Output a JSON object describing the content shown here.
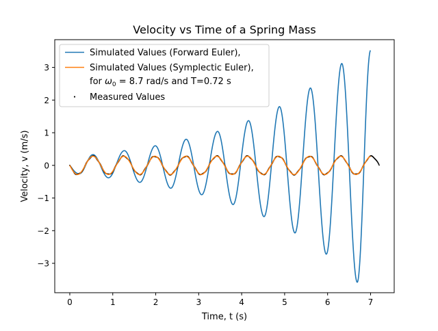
{
  "chart_data": {
    "type": "line",
    "title": "Velocity vs Time of a Spring Mass",
    "xlabel": "Time, t (s)",
    "ylabel": "Velocity, v (m/s)",
    "xlim": [
      -0.35,
      7.55
    ],
    "ylim": [
      -3.9,
      3.85
    ],
    "xticks": [
      0,
      1,
      2,
      3,
      4,
      5,
      6,
      7
    ],
    "yticks": [
      -3,
      -2,
      -1,
      0,
      1,
      2,
      3
    ],
    "xtick_labels": [
      "0",
      "1",
      "2",
      "3",
      "4",
      "5",
      "6",
      "7"
    ],
    "ytick_labels": [
      "−3",
      "−2",
      "−1",
      "0",
      "1",
      "2",
      "3"
    ],
    "grid": false,
    "legend_position": "top-left",
    "legend": {
      "entries": [
        "Simulated Values (Forward Euler),",
        "Simulated Values (Symplectic Euler),",
        "for ω₀ = 8.7 rad/s and T=0.72 s",
        "Measured Values"
      ],
      "parameter_line": {
        "prefix": "for ",
        "omega_symbol": "ω",
        "omega_subscript": "0",
        "rest": " = 8.7 rad/s and T=0.72 s"
      }
    },
    "model": {
      "omega0_rad_per_s": 8.7,
      "period_s": 0.72,
      "amplitude_m_per_s": 0.28,
      "t_end_simulated_s": 7.0,
      "t_end_measured_s": 7.2
    },
    "series": [
      {
        "name": "Simulated Values (Forward Euler),",
        "color": "#1f77b4",
        "style": "line",
        "description_of_values": "oscillation starting at v=0, growing envelope",
        "peaks": [
          {
            "t": 0.54,
            "v": 0.33
          },
          {
            "t": 0.9,
            "v": -0.38
          },
          {
            "t": 1.27,
            "v": 0.45
          },
          {
            "t": 1.63,
            "v": -0.52
          },
          {
            "t": 1.99,
            "v": 0.6
          },
          {
            "t": 2.35,
            "v": -0.7
          },
          {
            "t": 2.71,
            "v": 0.8
          },
          {
            "t": 3.07,
            "v": -0.9
          },
          {
            "t": 3.44,
            "v": 1.04
          },
          {
            "t": 3.8,
            "v": -1.2
          },
          {
            "t": 4.16,
            "v": 1.37
          },
          {
            "t": 4.52,
            "v": -1.57
          },
          {
            "t": 4.88,
            "v": 1.8
          },
          {
            "t": 5.24,
            "v": -2.07
          },
          {
            "t": 5.6,
            "v": 2.37
          },
          {
            "t": 5.97,
            "v": -2.72
          },
          {
            "t": 6.33,
            "v": 3.12
          },
          {
            "t": 6.69,
            "v": -3.58
          },
          {
            "t": 7.0,
            "v": 3.52
          }
        ]
      },
      {
        "name": "Simulated Values (Symplectic Euler),",
        "color": "#ff7f0e",
        "style": "line",
        "description_of_values": "constant amplitude oscillation about 0",
        "amplitude": 0.28,
        "t_range": [
          0,
          7.0
        ]
      },
      {
        "name": "Measured Values",
        "color": "#000000",
        "style": "points",
        "description_of_values": "dense dots following the constant amplitude oscillation",
        "amplitude": 0.28,
        "t_range": [
          0,
          7.2
        ]
      }
    ]
  }
}
